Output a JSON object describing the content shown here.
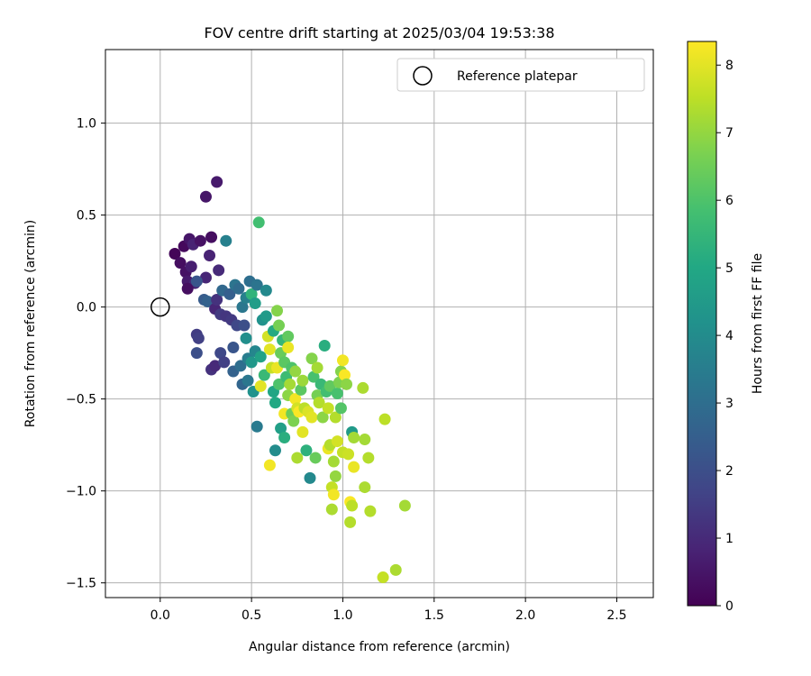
{
  "chart_data": {
    "type": "scatter",
    "title": "FOV centre drift starting at 2025/03/04 19:53:38",
    "xlabel": "Angular distance from reference (arcmin)",
    "ylabel": "Rotation from reference (arcmin)",
    "xlim": [
      -0.3,
      2.7
    ],
    "ylim": [
      -1.58,
      1.4
    ],
    "xticks": [
      0.0,
      0.5,
      1.0,
      1.5,
      2.0,
      2.5
    ],
    "xtick_labels": [
      "0.0",
      "0.5",
      "1.0",
      "1.5",
      "2.0",
      "2.5"
    ],
    "yticks": [
      1.0,
      0.5,
      0.0,
      -0.5,
      -1.0,
      -1.5
    ],
    "ytick_labels": [
      "1.0",
      "0.5",
      "0.0",
      "−0.5",
      "−1.0",
      "−1.5"
    ],
    "grid": true,
    "legend": {
      "placement": "top-right",
      "entries": [
        "Reference platepar"
      ]
    },
    "reference_point": {
      "x": 0.0,
      "y": 0.0
    },
    "colorbar": {
      "label": "Hours from first FF file",
      "range": [
        0,
        8.35
      ],
      "ticks": [
        0,
        1,
        2,
        3,
        4,
        5,
        6,
        7,
        8
      ],
      "tick_labels": [
        "0",
        "1",
        "2",
        "3",
        "4",
        "5",
        "6",
        "7",
        "8"
      ],
      "colormap": "viridis"
    },
    "points": [
      {
        "x": 0.08,
        "y": 0.29,
        "c": 0.1
      },
      {
        "x": 0.11,
        "y": 0.24,
        "c": 0.3
      },
      {
        "x": 0.13,
        "y": 0.33,
        "c": 0.2
      },
      {
        "x": 0.14,
        "y": 0.19,
        "c": 0.4
      },
      {
        "x": 0.16,
        "y": 0.37,
        "c": 0.5
      },
      {
        "x": 0.15,
        "y": 0.14,
        "c": 0.6
      },
      {
        "x": 0.17,
        "y": 0.22,
        "c": 0.7
      },
      {
        "x": 0.18,
        "y": 0.34,
        "c": 0.8
      },
      {
        "x": 0.19,
        "y": 0.13,
        "c": 0.9
      },
      {
        "x": 0.15,
        "y": 0.1,
        "c": 0.3
      },
      {
        "x": 0.22,
        "y": 0.36,
        "c": 0.4
      },
      {
        "x": 0.25,
        "y": 0.6,
        "c": 0.5
      },
      {
        "x": 0.31,
        "y": 0.68,
        "c": 0.6
      },
      {
        "x": 0.28,
        "y": 0.38,
        "c": 0.3
      },
      {
        "x": 0.27,
        "y": 0.28,
        "c": 0.8
      },
      {
        "x": 0.25,
        "y": 0.16,
        "c": 0.9
      },
      {
        "x": 0.32,
        "y": 0.2,
        "c": 1.0
      },
      {
        "x": 0.2,
        "y": -0.15,
        "c": 1.5
      },
      {
        "x": 0.21,
        "y": -0.17,
        "c": 1.6
      },
      {
        "x": 0.2,
        "y": -0.25,
        "c": 2.0
      },
      {
        "x": 0.2,
        "y": 0.14,
        "c": 2.2
      },
      {
        "x": 0.24,
        "y": 0.04,
        "c": 2.4
      },
      {
        "x": 0.26,
        "y": 0.03,
        "c": 2.6
      },
      {
        "x": 0.28,
        "y": -0.34,
        "c": 1.2
      },
      {
        "x": 0.3,
        "y": -0.32,
        "c": 1.0
      },
      {
        "x": 0.3,
        "y": -0.01,
        "c": 0.9
      },
      {
        "x": 0.31,
        "y": 0.04,
        "c": 1.2
      },
      {
        "x": 0.33,
        "y": -0.04,
        "c": 1.4
      },
      {
        "x": 0.33,
        "y": -0.25,
        "c": 1.8
      },
      {
        "x": 0.34,
        "y": 0.09,
        "c": 2.8
      },
      {
        "x": 0.35,
        "y": -0.3,
        "c": 1.6
      },
      {
        "x": 0.36,
        "y": -0.05,
        "c": 1.3
      },
      {
        "x": 0.36,
        "y": 0.36,
        "c": 3.6
      },
      {
        "x": 0.38,
        "y": 0.07,
        "c": 2.5
      },
      {
        "x": 0.39,
        "y": -0.07,
        "c": 1.4
      },
      {
        "x": 0.4,
        "y": -0.22,
        "c": 2.2
      },
      {
        "x": 0.4,
        "y": -0.35,
        "c": 2.6
      },
      {
        "x": 0.41,
        "y": 0.12,
        "c": 3.2
      },
      {
        "x": 0.42,
        "y": -0.1,
        "c": 1.8
      },
      {
        "x": 0.43,
        "y": 0.1,
        "c": 2.9
      },
      {
        "x": 0.44,
        "y": -0.32,
        "c": 3.0
      },
      {
        "x": 0.45,
        "y": -0.42,
        "c": 2.7
      },
      {
        "x": 0.45,
        "y": 0.0,
        "c": 3.3
      },
      {
        "x": 0.46,
        "y": -0.1,
        "c": 2.0
      },
      {
        "x": 0.47,
        "y": 0.05,
        "c": 3.6
      },
      {
        "x": 0.47,
        "y": -0.17,
        "c": 4.1
      },
      {
        "x": 0.48,
        "y": -0.28,
        "c": 3.5
      },
      {
        "x": 0.48,
        "y": -0.4,
        "c": 3.3
      },
      {
        "x": 0.49,
        "y": 0.14,
        "c": 3.0
      },
      {
        "x": 0.5,
        "y": -0.3,
        "c": 4.4
      },
      {
        "x": 0.5,
        "y": 0.07,
        "c": 5.4
      },
      {
        "x": 0.51,
        "y": -0.46,
        "c": 4.2
      },
      {
        "x": 0.52,
        "y": -0.24,
        "c": 3.8
      },
      {
        "x": 0.52,
        "y": 0.02,
        "c": 4.6
      },
      {
        "x": 0.53,
        "y": -0.65,
        "c": 3.4
      },
      {
        "x": 0.53,
        "y": 0.12,
        "c": 3.2
      },
      {
        "x": 0.54,
        "y": 0.46,
        "c": 5.8
      },
      {
        "x": 0.55,
        "y": -0.27,
        "c": 4.8
      },
      {
        "x": 0.55,
        "y": -0.43,
        "c": 8.0
      },
      {
        "x": 0.56,
        "y": -0.07,
        "c": 4.2
      },
      {
        "x": 0.57,
        "y": -0.37,
        "c": 5.6
      },
      {
        "x": 0.58,
        "y": -0.05,
        "c": 4.5
      },
      {
        "x": 0.58,
        "y": 0.09,
        "c": 3.9
      },
      {
        "x": 0.59,
        "y": -0.16,
        "c": 7.8
      },
      {
        "x": 0.6,
        "y": -0.86,
        "c": 8.2
      },
      {
        "x": 0.6,
        "y": -0.23,
        "c": 8.0
      },
      {
        "x": 0.61,
        "y": -0.33,
        "c": 7.6
      },
      {
        "x": 0.62,
        "y": -0.46,
        "c": 4.9
      },
      {
        "x": 0.62,
        "y": -0.13,
        "c": 5.1
      },
      {
        "x": 0.63,
        "y": -0.52,
        "c": 5.0
      },
      {
        "x": 0.63,
        "y": -0.78,
        "c": 4.0
      },
      {
        "x": 0.64,
        "y": -0.33,
        "c": 8.1
      },
      {
        "x": 0.64,
        "y": -0.02,
        "c": 6.8
      },
      {
        "x": 0.65,
        "y": -0.42,
        "c": 6.0
      },
      {
        "x": 0.65,
        "y": -0.1,
        "c": 6.6
      },
      {
        "x": 0.66,
        "y": -0.66,
        "c": 4.7
      },
      {
        "x": 0.66,
        "y": -0.25,
        "c": 6.4
      },
      {
        "x": 0.67,
        "y": -0.18,
        "c": 5.5
      },
      {
        "x": 0.68,
        "y": -0.58,
        "c": 8.2
      },
      {
        "x": 0.68,
        "y": -0.3,
        "c": 6.2
      },
      {
        "x": 0.68,
        "y": -0.71,
        "c": 5.2
      },
      {
        "x": 0.69,
        "y": -0.38,
        "c": 5.7
      },
      {
        "x": 0.7,
        "y": -0.16,
        "c": 6.3
      },
      {
        "x": 0.7,
        "y": -0.48,
        "c": 6.9
      },
      {
        "x": 0.7,
        "y": -0.22,
        "c": 8.1
      },
      {
        "x": 0.71,
        "y": -0.42,
        "c": 7.2
      },
      {
        "x": 0.72,
        "y": -0.58,
        "c": 6.5
      },
      {
        "x": 0.72,
        "y": -0.33,
        "c": 6.0
      },
      {
        "x": 0.73,
        "y": -0.62,
        "c": 6.7
      },
      {
        "x": 0.74,
        "y": -0.5,
        "c": 8.2
      },
      {
        "x": 0.74,
        "y": -0.35,
        "c": 7.0
      },
      {
        "x": 0.75,
        "y": -0.82,
        "c": 7.3
      },
      {
        "x": 0.75,
        "y": -0.55,
        "c": 7.8
      },
      {
        "x": 0.76,
        "y": -0.57,
        "c": 8.3
      },
      {
        "x": 0.77,
        "y": -0.45,
        "c": 6.2
      },
      {
        "x": 0.78,
        "y": -0.68,
        "c": 8.0
      },
      {
        "x": 0.78,
        "y": -0.4,
        "c": 7.1
      },
      {
        "x": 0.79,
        "y": -0.55,
        "c": 7.5
      },
      {
        "x": 0.8,
        "y": -0.78,
        "c": 5.3
      },
      {
        "x": 0.81,
        "y": -0.57,
        "c": 7.9
      },
      {
        "x": 0.82,
        "y": -0.93,
        "c": 3.9
      },
      {
        "x": 0.83,
        "y": -0.28,
        "c": 6.8
      },
      {
        "x": 0.83,
        "y": -0.6,
        "c": 8.0
      },
      {
        "x": 0.84,
        "y": -0.38,
        "c": 5.9
      },
      {
        "x": 0.85,
        "y": -0.82,
        "c": 6.4
      },
      {
        "x": 0.86,
        "y": -0.33,
        "c": 7.2
      },
      {
        "x": 0.86,
        "y": -0.48,
        "c": 6.6
      },
      {
        "x": 0.87,
        "y": -0.52,
        "c": 7.4
      },
      {
        "x": 0.88,
        "y": -0.42,
        "c": 5.6
      },
      {
        "x": 0.89,
        "y": -0.6,
        "c": 6.9
      },
      {
        "x": 0.9,
        "y": -0.21,
        "c": 5.2
      },
      {
        "x": 0.91,
        "y": -0.46,
        "c": 5.8
      },
      {
        "x": 0.92,
        "y": -0.77,
        "c": 8.1
      },
      {
        "x": 0.92,
        "y": -0.55,
        "c": 7.6
      },
      {
        "x": 0.93,
        "y": -0.43,
        "c": 6.3
      },
      {
        "x": 0.93,
        "y": -0.75,
        "c": 7.4
      },
      {
        "x": 0.94,
        "y": -1.1,
        "c": 7.3
      },
      {
        "x": 0.94,
        "y": -0.98,
        "c": 7.6
      },
      {
        "x": 0.95,
        "y": -1.02,
        "c": 8.2
      },
      {
        "x": 0.95,
        "y": -0.84,
        "c": 7.2
      },
      {
        "x": 0.96,
        "y": -0.6,
        "c": 7.4
      },
      {
        "x": 0.96,
        "y": -0.92,
        "c": 7.0
      },
      {
        "x": 0.97,
        "y": -0.47,
        "c": 5.9
      },
      {
        "x": 0.97,
        "y": -0.73,
        "c": 7.8
      },
      {
        "x": 0.98,
        "y": -0.41,
        "c": 6.7
      },
      {
        "x": 0.99,
        "y": -0.35,
        "c": 6.8
      },
      {
        "x": 0.99,
        "y": -0.55,
        "c": 6.1
      },
      {
        "x": 1.0,
        "y": -0.29,
        "c": 8.2
      },
      {
        "x": 1.0,
        "y": -0.79,
        "c": 7.6
      },
      {
        "x": 1.01,
        "y": -0.37,
        "c": 8.3
      },
      {
        "x": 1.02,
        "y": -0.42,
        "c": 6.9
      },
      {
        "x": 1.03,
        "y": -0.8,
        "c": 7.7
      },
      {
        "x": 1.04,
        "y": -1.06,
        "c": 8.3
      },
      {
        "x": 1.04,
        "y": -1.17,
        "c": 7.4
      },
      {
        "x": 1.05,
        "y": -1.08,
        "c": 7.5
      },
      {
        "x": 1.05,
        "y": -0.68,
        "c": 4.5
      },
      {
        "x": 1.06,
        "y": -0.71,
        "c": 7.2
      },
      {
        "x": 1.06,
        "y": -0.87,
        "c": 8.1
      },
      {
        "x": 1.11,
        "y": -0.44,
        "c": 7.3
      },
      {
        "x": 1.12,
        "y": -0.72,
        "c": 7.2
      },
      {
        "x": 1.12,
        "y": -0.98,
        "c": 7.3
      },
      {
        "x": 1.14,
        "y": -0.82,
        "c": 7.4
      },
      {
        "x": 1.15,
        "y": -1.11,
        "c": 7.4
      },
      {
        "x": 1.22,
        "y": -1.47,
        "c": 7.6
      },
      {
        "x": 1.23,
        "y": -0.61,
        "c": 7.5
      },
      {
        "x": 1.29,
        "y": -1.43,
        "c": 7.3
      },
      {
        "x": 1.34,
        "y": -1.08,
        "c": 7.2
      }
    ]
  }
}
